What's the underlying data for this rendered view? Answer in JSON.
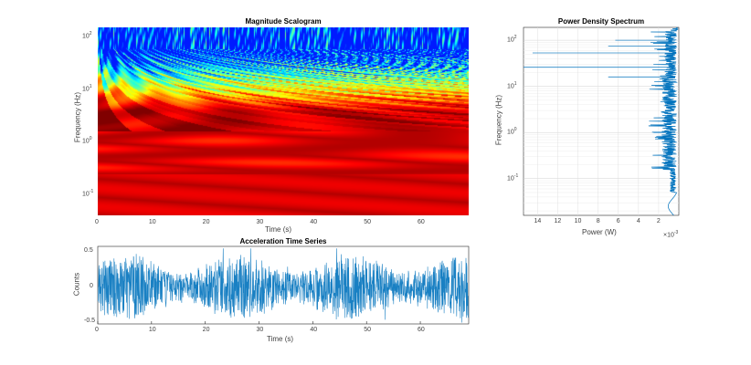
{
  "chart_data": [
    {
      "type": "heatmap",
      "title": "Magnitude Scalogram",
      "xlabel": "Time (s)",
      "ylabel": "Frequency (Hz)",
      "xlim": [
        0,
        69
      ],
      "ylim": [
        0.04,
        150
      ],
      "yscale": "log",
      "xticks": [
        "0",
        "10",
        "20",
        "30",
        "40",
        "50",
        "60"
      ],
      "yticks": [
        {
          "base": "10",
          "exp": "2",
          "value": 100
        },
        {
          "base": "10",
          "exp": "1",
          "value": 10
        },
        {
          "base": "10",
          "exp": "0",
          "value": 1
        },
        {
          "base": "10",
          "exp": "-1",
          "value": 0.1
        }
      ],
      "colormap": "jet reversed (red = high magnitude, blue = low)",
      "grid": false
    },
    {
      "type": "line",
      "title": "Acceleration Time Series",
      "xlabel": "Time (s)",
      "ylabel": "Counts",
      "xlim": [
        0,
        69
      ],
      "ylim": [
        -0.52,
        0.58
      ],
      "xticks": [
        "0",
        "10",
        "20",
        "30",
        "40",
        "50",
        "60"
      ],
      "yticks": [
        "0.5",
        "0",
        "-0.5"
      ],
      "amplitude_range": [
        -0.5,
        0.55
      ],
      "color": "#0072BD",
      "grid": false
    },
    {
      "type": "line",
      "title": "Power Density Spectrum",
      "xlabel": "Power (W)",
      "ylabel": "Frequency (Hz)",
      "x_exponent_label": "×10",
      "x_exponent": "-3",
      "xlim": [
        15.4,
        0
      ],
      "x_reversed": true,
      "ylim": [
        0.016,
        190
      ],
      "yscale": "log",
      "xticks": [
        "14",
        "12",
        "10",
        "8",
        "6",
        "4",
        "2"
      ],
      "yticks": [
        {
          "base": "10",
          "exp": "2",
          "value": 100
        },
        {
          "base": "10",
          "exp": "1",
          "value": 10
        },
        {
          "base": "10",
          "exp": "0",
          "value": 1
        },
        {
          "base": "10",
          "exp": "-1",
          "value": 0.1
        }
      ],
      "peaks": [
        {
          "freq": 100,
          "power": 6.3
        },
        {
          "freq": 75,
          "power": 7.0
        },
        {
          "freq": 53,
          "power": 14.5
        },
        {
          "freq": 26,
          "power": 15.4
        },
        {
          "freq": 16,
          "power": 7.0
        },
        {
          "freq": 1.0,
          "power": 2.5
        }
      ],
      "color": "#0072BD",
      "grid": true
    }
  ]
}
